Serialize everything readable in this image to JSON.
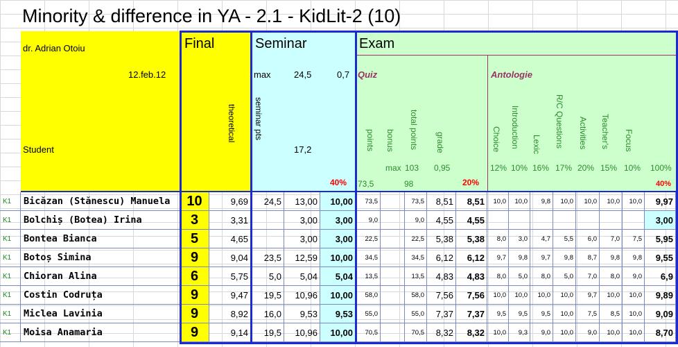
{
  "title": "Minority & difference in YA - 2.1 - KidLit-2 (10)",
  "header": {
    "author": "dr. Adrian Otoiu",
    "date": "12.feb.12",
    "student_label": "Student",
    "final_label": "Final",
    "theoretical_label": "theoretical",
    "seminar_label": "Seminar",
    "seminar_max_label": "max",
    "seminar_max_value": "24,5",
    "seminar_ratio": "0,7",
    "seminar_pts_label": "seminar pts",
    "seminar_pts_value": "17,2",
    "seminar_weight": "40%",
    "exam_label": "Exam",
    "quiz_label": "Quiz",
    "quiz_points_label": "points",
    "quiz_bonus_label": "bonus",
    "quiz_total_label": "total points",
    "quiz_grade_label": "grade",
    "quiz_max_label": "max",
    "quiz_max_value": "103",
    "quiz_grade_factor": "0,95",
    "quiz_points_value": "73,5",
    "quiz_total_value": "98",
    "quiz_weight": "20%",
    "antologie_label": "Antologie",
    "antologie_cols": [
      {
        "label": "Choice",
        "pct": "12%"
      },
      {
        "label": "Introduction",
        "pct": "10%"
      },
      {
        "label": "Lexic",
        "pct": "16%"
      },
      {
        "label": "R/C Questions",
        "pct": "17%"
      },
      {
        "label": "Activities",
        "pct": "20%"
      },
      {
        "label": "Teacher's",
        "pct": "15%"
      },
      {
        "label": "Focus",
        "pct": "10%"
      }
    ],
    "antologie_total_pct": "100%",
    "antologie_weight": "40%"
  },
  "students": [
    {
      "tag": "K1",
      "name": "Bicăzan (Stănescu) Manuela",
      "final": "10",
      "theo": "9,69",
      "sem_pts": "24,5",
      "sem_raw": "13,00",
      "sem_grade": "10,00",
      "q_pts": "73,5",
      "q_bonus": "",
      "q_total": "73,5",
      "q_grade": "8,51",
      "q_final": "8,51",
      "a": [
        "10,0",
        "10,0",
        "9,8",
        "10,0",
        "10,0",
        "10,0",
        "10,0"
      ],
      "a_final": "9,97"
    },
    {
      "tag": "K1",
      "name": "Bolchiș (Botea) Irina",
      "final": "3",
      "theo": "3,31",
      "sem_pts": "",
      "sem_raw": "3,00",
      "sem_grade": "3,00",
      "q_pts": "9,0",
      "q_bonus": "",
      "q_total": "9,0",
      "q_grade": "4,55",
      "q_final": "4,55",
      "a": [
        "",
        "",
        "",
        "",
        "",
        "",
        ""
      ],
      "a_final": "3,00"
    },
    {
      "tag": "K1",
      "name": "Bontea Bianca",
      "final": "5",
      "theo": "4,65",
      "sem_pts": "",
      "sem_raw": "3,00",
      "sem_grade": "3,00",
      "q_pts": "22,5",
      "q_bonus": "",
      "q_total": "22,5",
      "q_grade": "5,38",
      "q_final": "5,38",
      "a": [
        "8,0",
        "3,0",
        "4,7",
        "5,5",
        "6,0",
        "7,0",
        "7,5"
      ],
      "a_final": "5,95"
    },
    {
      "tag": "K1",
      "name": "Botoș Simina",
      "final": "9",
      "theo": "9,04",
      "sem_pts": "23,5",
      "sem_raw": "12,59",
      "sem_grade": "10,00",
      "q_pts": "34,5",
      "q_bonus": "",
      "q_total": "34,5",
      "q_grade": "6,12",
      "q_final": "6,12",
      "a": [
        "9,7",
        "9,8",
        "9,7",
        "9,8",
        "8,7",
        "9,8",
        "9,8"
      ],
      "a_final": "9,55"
    },
    {
      "tag": "K1",
      "name": "Chioran Alina",
      "final": "6",
      "theo": "5,75",
      "sem_pts": "5,0",
      "sem_raw": "5,04",
      "sem_grade": "5,04",
      "q_pts": "13,5",
      "q_bonus": "",
      "q_total": "13,5",
      "q_grade": "4,83",
      "q_final": "4,83",
      "a": [
        "8,0",
        "5,0",
        "8,0",
        "5,0",
        "7,0",
        "8,0",
        "9,0"
      ],
      "a_final": "6,9"
    },
    {
      "tag": "K1",
      "name": "Costin Codruța",
      "final": "9",
      "theo": "9,47",
      "sem_pts": "19,5",
      "sem_raw": "10,96",
      "sem_grade": "10,00",
      "q_pts": "58,0",
      "q_bonus": "",
      "q_total": "58,0",
      "q_grade": "7,56",
      "q_final": "7,56",
      "a": [
        "10,0",
        "10,0",
        "10,0",
        "10,0",
        "9,7",
        "10,0",
        "10,0"
      ],
      "a_final": "9,89"
    },
    {
      "tag": "K1",
      "name": "Miclea Lavinia",
      "final": "9",
      "theo": "8,92",
      "sem_pts": "16,0",
      "sem_raw": "9,53",
      "sem_grade": "9,53",
      "q_pts": "55,0",
      "q_bonus": "",
      "q_total": "55,0",
      "q_grade": "7,37",
      "q_final": "7,37",
      "a": [
        "9,5",
        "9,5",
        "9,5",
        "10,0",
        "7,5",
        "8,5",
        "10,0"
      ],
      "a_final": "9,09"
    },
    {
      "tag": "K1",
      "name": "Moisa Anamaria",
      "final": "9",
      "theo": "9,14",
      "sem_pts": "19,5",
      "sem_raw": "10,96",
      "sem_grade": "10,00",
      "q_pts": "70,5",
      "q_bonus": "",
      "q_total": "70,5",
      "q_grade": "8,32",
      "q_final": "8,32",
      "a": [
        "10,0",
        "9,3",
        "9,0",
        "10,0",
        "9,0",
        "10,0",
        "10,0"
      ],
      "a_final": "8,70"
    }
  ]
}
